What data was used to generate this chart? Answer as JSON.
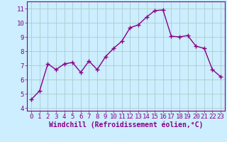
{
  "x": [
    0,
    1,
    2,
    3,
    4,
    5,
    6,
    7,
    8,
    9,
    10,
    11,
    12,
    13,
    14,
    15,
    16,
    17,
    18,
    19,
    20,
    21,
    22,
    23
  ],
  "y": [
    4.6,
    5.2,
    7.1,
    6.7,
    7.1,
    7.2,
    6.5,
    7.3,
    6.7,
    7.6,
    8.2,
    8.7,
    9.65,
    9.85,
    10.4,
    10.85,
    10.9,
    9.05,
    9.0,
    9.1,
    8.35,
    8.2,
    6.7,
    6.2
  ],
  "line_color": "#880088",
  "marker": "+",
  "marker_size": 4,
  "marker_linewidth": 1.0,
  "background_color": "#cceeff",
  "grid_color": "#aacccc",
  "xlabel": "Windchill (Refroidissement éolien,°C)",
  "xlim": [
    -0.5,
    23.5
  ],
  "ylim": [
    3.8,
    11.5
  ],
  "yticks": [
    4,
    5,
    6,
    7,
    8,
    9,
    10,
    11
  ],
  "xticks": [
    0,
    1,
    2,
    3,
    4,
    5,
    6,
    7,
    8,
    9,
    10,
    11,
    12,
    13,
    14,
    15,
    16,
    17,
    18,
    19,
    20,
    21,
    22,
    23
  ],
  "xlabel_fontsize": 7,
  "tick_fontsize": 6.5,
  "label_color": "#880088",
  "tick_color": "#880088",
  "spine_color": "#880088",
  "linewidth": 1.0
}
